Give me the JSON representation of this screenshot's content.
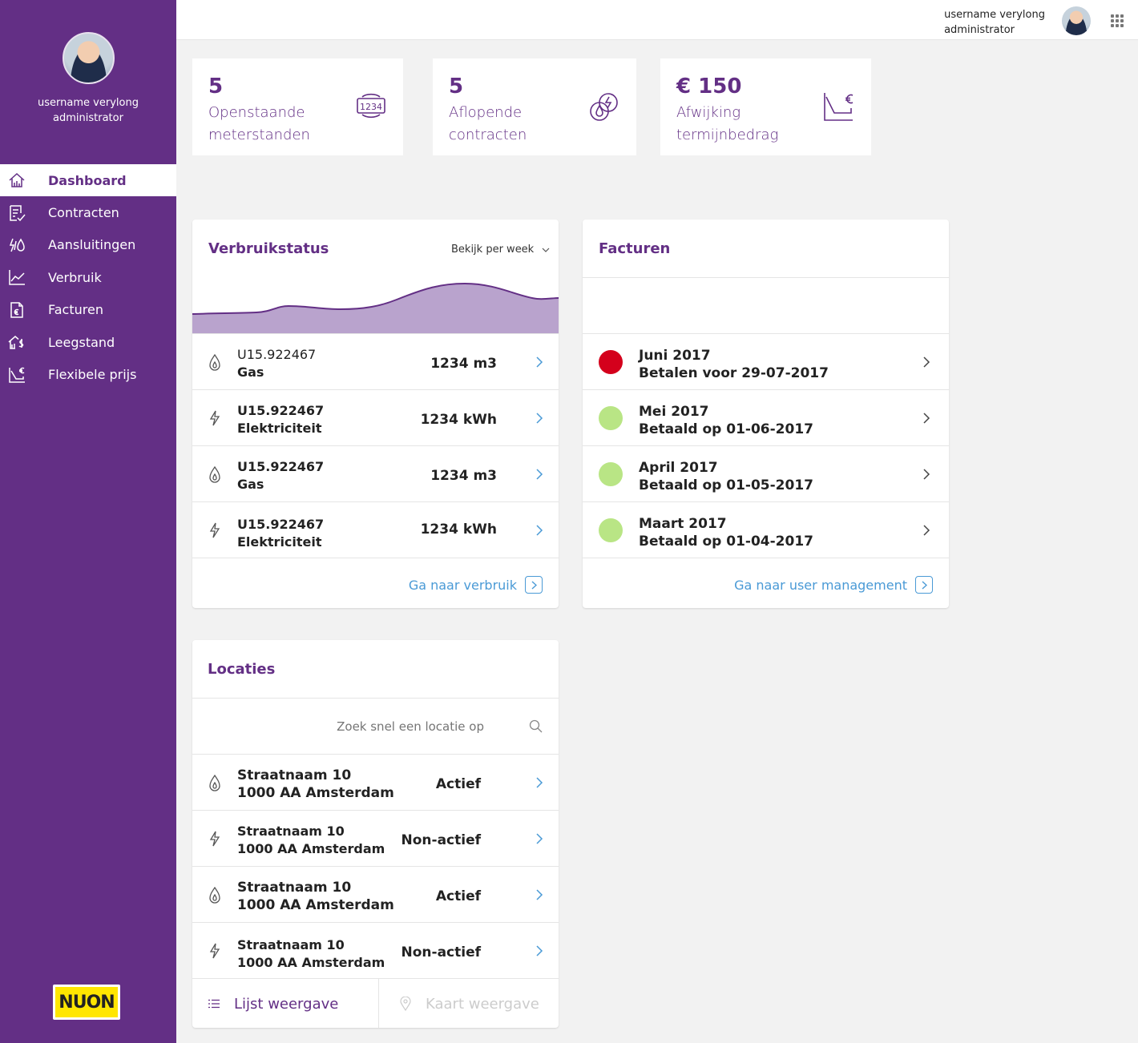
{
  "user": {
    "name": "username verylong",
    "role": "administrator"
  },
  "nav": [
    {
      "label": "Dashboard",
      "icon": "home-icon",
      "active": true
    },
    {
      "label": "Contracten",
      "icon": "contract-icon"
    },
    {
      "label": "Aansluitingen",
      "icon": "connections-icon"
    },
    {
      "label": "Verbruik",
      "icon": "chart-icon"
    },
    {
      "label": "Facturen",
      "icon": "invoice-icon"
    },
    {
      "label": "Leegstand",
      "icon": "vacancy-icon"
    },
    {
      "label": "Flexibele prijs",
      "icon": "flexible-price-icon"
    }
  ],
  "logo": {
    "text": "NUON"
  },
  "stats": [
    {
      "value": "5",
      "label1": "Openstaande",
      "label2": "meterstanden",
      "icon": "meter-icon"
    },
    {
      "value": "5",
      "label1": "Aflopende",
      "label2": "contracten",
      "icon": "energy-icon"
    },
    {
      "value": "€ 150",
      "label1": "Afwijking",
      "label2": "termijnbedrag",
      "icon": "price-decline-icon"
    }
  ],
  "verbruik": {
    "title": "Verbruikstatus",
    "period_select": "Bekijk per week",
    "rows": [
      {
        "id": "U15.922467",
        "type": "Gas",
        "value": "1234 m3",
        "icon": "gas-icon"
      },
      {
        "id": "U15.922467",
        "type": "Elektriciteit",
        "value": "1234 kWh",
        "icon": "electricity-icon"
      },
      {
        "id": "U15.922467",
        "type": "Gas",
        "value": "1234 m3",
        "icon": "gas-icon"
      },
      {
        "id": "U15.922467",
        "type": "Elektriciteit",
        "value": "1234 kWh",
        "icon": "electricity-icon"
      }
    ],
    "link": "Ga naar verbruik"
  },
  "facturen": {
    "title": "Facturen",
    "rows": [
      {
        "month": "Juni 2017",
        "status": "Betalen voor 29-07-2017",
        "color": "#d4001c"
      },
      {
        "month": "Mei 2017",
        "status": "Betaald op 01-06-2017",
        "color": "#b9e585"
      },
      {
        "month": "April 2017",
        "status": "Betaald op 01-05-2017",
        "color": "#b9e585"
      },
      {
        "month": "Maart 2017",
        "status": "Betaald op 01-04-2017",
        "color": "#b9e585"
      }
    ],
    "link": "Ga naar user management"
  },
  "locaties": {
    "title": "Locaties",
    "search_placeholder": "Zoek snel een locatie op",
    "rows": [
      {
        "street": "Straatnaam 10",
        "city": "1000 AA Amsterdam",
        "status": "Actief",
        "icon": "gas-icon"
      },
      {
        "street": "Straatnaam 10",
        "city": "1000 AA Amsterdam",
        "status": "Non-actief",
        "icon": "electricity-icon"
      },
      {
        "street": "Straatnaam 10",
        "city": "1000 AA Amsterdam",
        "status": "Actief",
        "icon": "gas-icon"
      },
      {
        "street": "Straatnaam 10",
        "city": "1000 AA Amsterdam",
        "status": "Non-actief",
        "icon": "electricity-icon"
      }
    ],
    "tab_list": "Lijst weergave",
    "tab_map": "Kaart weergave"
  },
  "colors": {
    "brand": "#632f85",
    "link": "#4a9ad6",
    "chart_fill": "#b9a3cd"
  }
}
